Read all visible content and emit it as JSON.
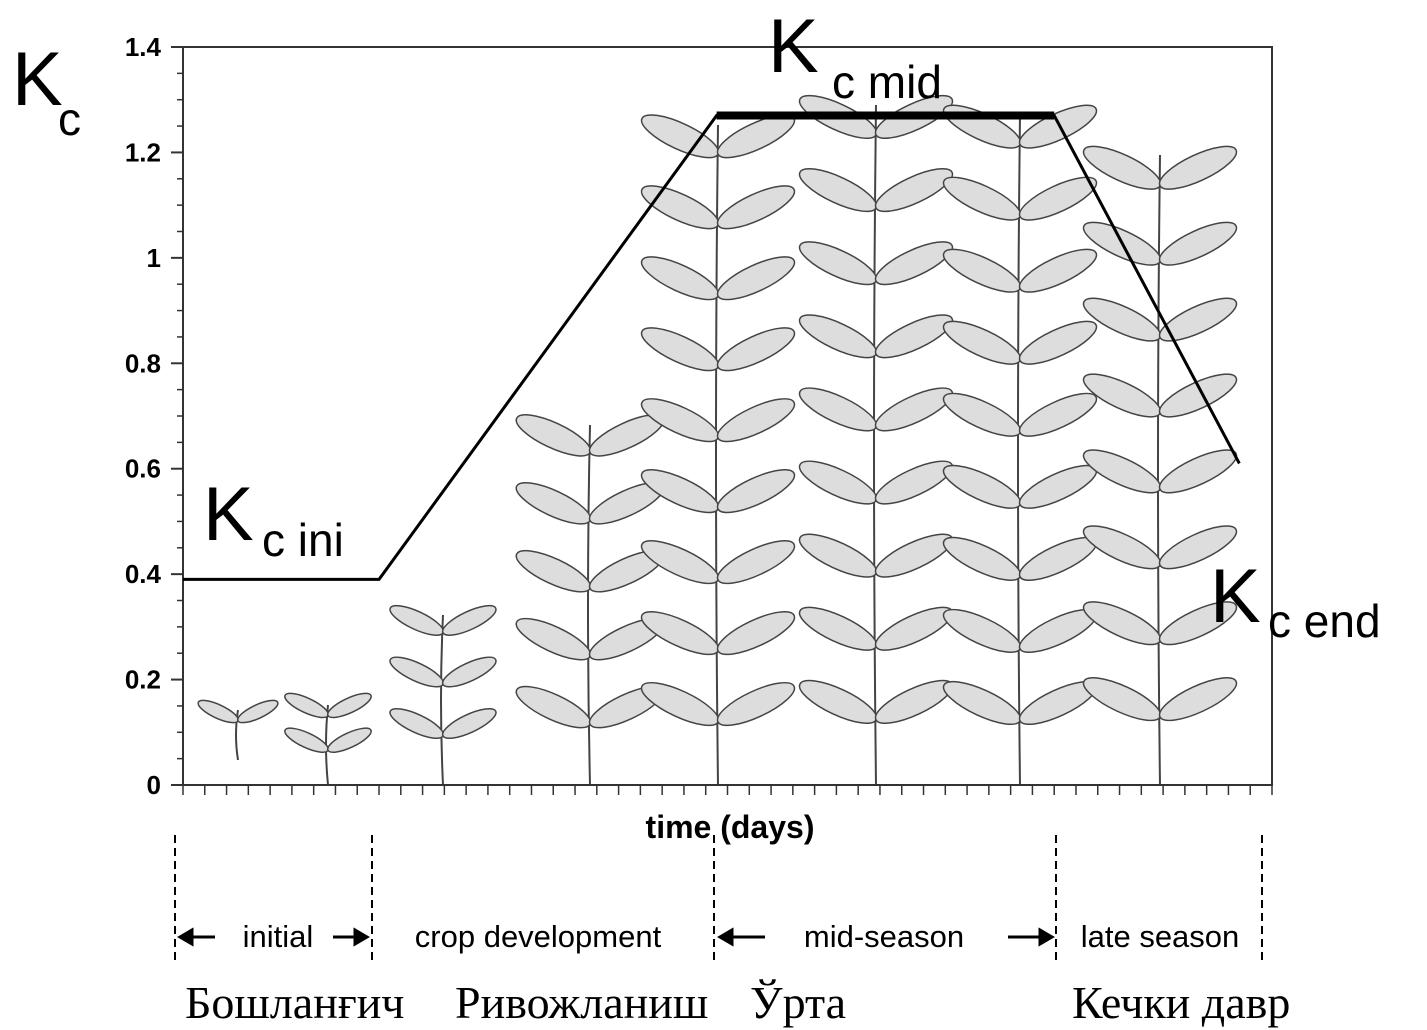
{
  "chart_data": {
    "type": "line",
    "y_label": {
      "text": "K",
      "sub": "c"
    },
    "x_label": "time (days)",
    "xlim": [
      0,
      50
    ],
    "ylim": [
      0,
      1.4
    ],
    "yticks": [
      0,
      0.2,
      0.4,
      0.6,
      0.8,
      1,
      1.2,
      1.4
    ],
    "x": [
      0,
      9,
      24.5,
      40,
      48.5
    ],
    "series": [
      {
        "color": "#000000",
        "values": [
          0.39,
          0.39,
          1.27,
          1.27,
          0.61
        ]
      }
    ],
    "annotations": [
      {
        "text": "K",
        "sub": "c mid"
      },
      {
        "text": "K",
        "sub": "c ini"
      },
      {
        "text": "K",
        "sub": "c end"
      }
    ],
    "stages": [
      "initial",
      "crop development",
      "mid-season",
      "late season"
    ],
    "stages_local": [
      "Бошланғич",
      "Ривожланиш",
      "Ўрта",
      "Кечки давр"
    ]
  }
}
